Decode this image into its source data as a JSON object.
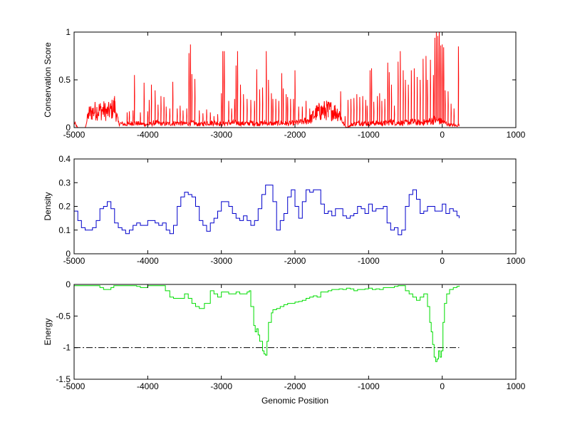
{
  "chart_data": [
    {
      "type": "line",
      "ylabel": "Conservation Score",
      "xlim": [
        -5000,
        1000
      ],
      "ylim": [
        0,
        1
      ],
      "xticks": [
        -5000,
        -4000,
        -3000,
        -2000,
        -1000,
        0,
        1000
      ],
      "yticks": [
        0,
        0.5,
        1
      ],
      "ytick_labels": [
        "0",
        "0.5",
        "1"
      ],
      "grid": false,
      "color": "#ff0000",
      "x_start": -5000,
      "x_end": 230,
      "profile": [
        [
          -5000,
          0.05
        ],
        [
          -4950,
          0.0
        ],
        [
          -4850,
          0.0
        ],
        [
          -4800,
          0.15
        ],
        [
          -4700,
          0.18
        ],
        [
          -4600,
          0.18
        ],
        [
          -4550,
          0.16
        ],
        [
          -4500,
          0.18
        ],
        [
          -4450,
          0.22
        ],
        [
          -4400,
          0.05
        ],
        [
          -4300,
          0.03
        ],
        [
          -4200,
          0.05
        ],
        [
          -4100,
          0.04
        ],
        [
          -4000,
          0.03
        ],
        [
          -3900,
          0.05
        ],
        [
          -3800,
          0.04
        ],
        [
          -3700,
          0.04
        ],
        [
          -3600,
          0.05
        ],
        [
          -3500,
          0.04
        ],
        [
          -3400,
          0.05
        ],
        [
          -3300,
          0.03
        ],
        [
          -3200,
          0.05
        ],
        [
          -3100,
          0.05
        ],
        [
          -3000,
          0.04
        ],
        [
          -2900,
          0.05
        ],
        [
          -2800,
          0.05
        ],
        [
          -2700,
          0.04
        ],
        [
          -2600,
          0.05
        ],
        [
          -2500,
          0.04
        ],
        [
          -2400,
          0.05
        ],
        [
          -2300,
          0.04
        ],
        [
          -2200,
          0.05
        ],
        [
          -2100,
          0.04
        ],
        [
          -2000,
          0.05
        ],
        [
          -1900,
          0.06
        ],
        [
          -1800,
          0.08
        ],
        [
          -1700,
          0.16
        ],
        [
          -1600,
          0.18
        ],
        [
          -1500,
          0.18
        ],
        [
          -1400,
          0.15
        ],
        [
          -1340,
          0.04
        ],
        [
          -1300,
          0.0
        ],
        [
          -1200,
          0.04
        ],
        [
          -1100,
          0.05
        ],
        [
          -1000,
          0.04
        ],
        [
          -900,
          0.05
        ],
        [
          -800,
          0.04
        ],
        [
          -700,
          0.06
        ],
        [
          -600,
          0.05
        ],
        [
          -500,
          0.05
        ],
        [
          -400,
          0.06
        ],
        [
          -300,
          0.05
        ],
        [
          -200,
          0.06
        ],
        [
          -100,
          0.08
        ],
        [
          0,
          0.06
        ],
        [
          100,
          0.03
        ],
        [
          200,
          0.02
        ],
        [
          230,
          0.03
        ]
      ],
      "peaks": [
        [
          -4450,
          0.33
        ],
        [
          -4280,
          0.16
        ],
        [
          -4250,
          0.17
        ],
        [
          -4200,
          0.18
        ],
        [
          -4180,
          0.55
        ],
        [
          -4100,
          0.16
        ],
        [
          -4050,
          0.47
        ],
        [
          -4000,
          0.17
        ],
        [
          -3980,
          0.29
        ],
        [
          -3950,
          0.45
        ],
        [
          -3900,
          0.39
        ],
        [
          -3860,
          0.24
        ],
        [
          -3820,
          0.33
        ],
        [
          -3780,
          0.32
        ],
        [
          -3750,
          0.22
        ],
        [
          -3700,
          0.2
        ],
        [
          -3660,
          0.48
        ],
        [
          -3600,
          0.2
        ],
        [
          -3560,
          0.23
        ],
        [
          -3520,
          0.18
        ],
        [
          -3470,
          0.2
        ],
        [
          -3440,
          0.78
        ],
        [
          -3420,
          0.87
        ],
        [
          -3400,
          0.56
        ],
        [
          -3360,
          0.51
        ],
        [
          -3300,
          0.18
        ],
        [
          -3250,
          0.15
        ],
        [
          -3200,
          0.19
        ],
        [
          -3150,
          0.16
        ],
        [
          -3100,
          0.12
        ],
        [
          -3050,
          0.14
        ],
        [
          -3000,
          0.36
        ],
        [
          -2980,
          0.8
        ],
        [
          -2960,
          0.8
        ],
        [
          -2900,
          0.28
        ],
        [
          -2860,
          0.2
        ],
        [
          -2820,
          0.3
        ],
        [
          -2800,
          0.65
        ],
        [
          -2780,
          0.8
        ],
        [
          -2740,
          0.45
        ],
        [
          -2700,
          0.35
        ],
        [
          -2650,
          0.3
        ],
        [
          -2600,
          0.29
        ],
        [
          -2550,
          0.28
        ],
        [
          -2520,
          0.61
        ],
        [
          -2480,
          0.4
        ],
        [
          -2440,
          0.42
        ],
        [
          -2390,
          0.8
        ],
        [
          -2360,
          0.5
        ],
        [
          -2320,
          0.36
        ],
        [
          -2300,
          0.3
        ],
        [
          -2260,
          0.3
        ],
        [
          -2220,
          0.28
        ],
        [
          -2180,
          0.57
        ],
        [
          -2160,
          0.41
        ],
        [
          -2120,
          0.35
        ],
        [
          -2100,
          0.32
        ],
        [
          -2060,
          0.3
        ],
        [
          -2020,
          0.3
        ],
        [
          -2000,
          0.6
        ],
        [
          -1950,
          0.22
        ],
        [
          -1900,
          0.22
        ],
        [
          -1850,
          0.28
        ],
        [
          -1800,
          0.2
        ],
        [
          -1750,
          0.18
        ],
        [
          -1700,
          0.2
        ],
        [
          -1650,
          0.22
        ],
        [
          -1600,
          0.16
        ],
        [
          -1550,
          0.18
        ],
        [
          -1500,
          0.18
        ],
        [
          -1450,
          0.2
        ],
        [
          -1380,
          0.38
        ],
        [
          -1320,
          0.12
        ],
        [
          -1280,
          0.29
        ],
        [
          -1240,
          0.3
        ],
        [
          -1200,
          0.31
        ],
        [
          -1160,
          0.35
        ],
        [
          -1120,
          0.32
        ],
        [
          -1080,
          0.33
        ],
        [
          -1040,
          0.29
        ],
        [
          -1020,
          0.23
        ],
        [
          -980,
          0.6
        ],
        [
          -960,
          0.62
        ],
        [
          -930,
          0.27
        ],
        [
          -880,
          0.33
        ],
        [
          -850,
          0.36
        ],
        [
          -820,
          0.28
        ],
        [
          -780,
          0.3
        ],
        [
          -740,
          0.68
        ],
        [
          -720,
          0.58
        ],
        [
          -690,
          0.45
        ],
        [
          -650,
          0.23
        ],
        [
          -600,
          0.69
        ],
        [
          -570,
          0.8
        ],
        [
          -530,
          0.6
        ],
        [
          -500,
          0.5
        ],
        [
          -460,
          0.45
        ],
        [
          -420,
          0.6
        ],
        [
          -380,
          0.62
        ],
        [
          -340,
          0.53
        ],
        [
          -300,
          0.5
        ],
        [
          -260,
          0.72
        ],
        [
          -220,
          0.75
        ],
        [
          -200,
          0.5
        ],
        [
          -160,
          0.71
        ],
        [
          -120,
          0.55
        ],
        [
          -100,
          0.94
        ],
        [
          -80,
          1.0
        ],
        [
          -60,
          0.96
        ],
        [
          -40,
          1.0
        ],
        [
          -20,
          0.86
        ],
        [
          0,
          0.87
        ],
        [
          20,
          0.84
        ],
        [
          40,
          0.39
        ],
        [
          80,
          0.38
        ],
        [
          120,
          0.25
        ],
        [
          160,
          0.2
        ],
        [
          220,
          0.85
        ]
      ]
    },
    {
      "type": "line",
      "ylabel": "Density",
      "xlim": [
        -5000,
        1000
      ],
      "ylim": [
        0,
        0.4
      ],
      "xticks": [
        -5000,
        -4000,
        -3000,
        -2000,
        -1000,
        0,
        1000
      ],
      "yticks": [
        0,
        0.1,
        0.2,
        0.3,
        0.4
      ],
      "ytick_labels": [
        "0",
        "0.1",
        "0.2",
        "0.3",
        "0.4"
      ],
      "grid": false,
      "color": "#0000cc",
      "x": [
        -5000,
        -4950,
        -4900,
        -4850,
        -4800,
        -4750,
        -4700,
        -4650,
        -4600,
        -4550,
        -4500,
        -4450,
        -4400,
        -4350,
        -4300,
        -4250,
        -4200,
        -4150,
        -4100,
        -4050,
        -4000,
        -3950,
        -3900,
        -3850,
        -3800,
        -3750,
        -3700,
        -3650,
        -3600,
        -3550,
        -3500,
        -3450,
        -3400,
        -3350,
        -3300,
        -3250,
        -3200,
        -3150,
        -3100,
        -3050,
        -3000,
        -2950,
        -2900,
        -2850,
        -2800,
        -2750,
        -2700,
        -2650,
        -2600,
        -2550,
        -2500,
        -2450,
        -2400,
        -2350,
        -2300,
        -2250,
        -2200,
        -2150,
        -2100,
        -2050,
        -2000,
        -1950,
        -1900,
        -1850,
        -1800,
        -1750,
        -1700,
        -1650,
        -1600,
        -1550,
        -1500,
        -1450,
        -1400,
        -1350,
        -1300,
        -1250,
        -1200,
        -1150,
        -1100,
        -1050,
        -1000,
        -950,
        -900,
        -850,
        -800,
        -750,
        -700,
        -650,
        -600,
        -550,
        -500,
        -450,
        -400,
        -350,
        -300,
        -250,
        -200,
        -150,
        -100,
        -50,
        0,
        50,
        100,
        150,
        200,
        230
      ],
      "y": [
        0.18,
        0.14,
        0.11,
        0.1,
        0.1,
        0.11,
        0.14,
        0.19,
        0.2,
        0.22,
        0.19,
        0.13,
        0.11,
        0.1,
        0.085,
        0.1,
        0.12,
        0.13,
        0.12,
        0.12,
        0.14,
        0.14,
        0.13,
        0.12,
        0.13,
        0.1,
        0.085,
        0.12,
        0.2,
        0.24,
        0.26,
        0.25,
        0.24,
        0.2,
        0.14,
        0.12,
        0.095,
        0.13,
        0.15,
        0.18,
        0.22,
        0.22,
        0.2,
        0.17,
        0.15,
        0.14,
        0.16,
        0.14,
        0.12,
        0.14,
        0.19,
        0.25,
        0.29,
        0.29,
        0.22,
        0.1,
        0.14,
        0.17,
        0.24,
        0.27,
        0.2,
        0.15,
        0.22,
        0.27,
        0.26,
        0.27,
        0.27,
        0.21,
        0.17,
        0.18,
        0.16,
        0.19,
        0.19,
        0.16,
        0.15,
        0.16,
        0.17,
        0.2,
        0.19,
        0.17,
        0.21,
        0.18,
        0.19,
        0.19,
        0.2,
        0.13,
        0.1,
        0.11,
        0.08,
        0.1,
        0.2,
        0.25,
        0.27,
        0.23,
        0.17,
        0.18,
        0.2,
        0.2,
        0.18,
        0.18,
        0.21,
        0.17,
        0.19,
        0.18,
        0.16,
        0.15
      ]
    },
    {
      "type": "line",
      "ylabel": "Energy",
      "xlabel": "Genomic Position",
      "xlim": [
        -5000,
        1000
      ],
      "ylim": [
        -1.5,
        0
      ],
      "xticks": [
        -5000,
        -4000,
        -3000,
        -2000,
        -1000,
        0,
        1000
      ],
      "yticks": [
        0,
        -0.5,
        -1,
        -1.5
      ],
      "ytick_labels": [
        "0",
        "-0.5",
        "-1",
        "-1.5"
      ],
      "grid": false,
      "color": "#00dd00",
      "threshold": -1,
      "threshold_color": "#000000",
      "threshold_range": [
        -5000,
        230
      ],
      "x": [
        -5000,
        -4700,
        -4650,
        -4600,
        -4550,
        -4500,
        -4460,
        -4450,
        -4200,
        -4150,
        -4100,
        -4050,
        -4000,
        -3900,
        -3800,
        -3760,
        -3700,
        -3650,
        -3600,
        -3550,
        -3500,
        -3450,
        -3400,
        -3350,
        -3300,
        -3250,
        -3230,
        -3200,
        -3150,
        -3100,
        -3050,
        -3000,
        -2950,
        -2900,
        -2850,
        -2800,
        -2750,
        -2700,
        -2650,
        -2620,
        -2600,
        -2560,
        -2540,
        -2520,
        -2500,
        -2480,
        -2460,
        -2440,
        -2420,
        -2400,
        -2380,
        -2360,
        -2340,
        -2320,
        -2300,
        -2250,
        -2200,
        -2150,
        -2100,
        -2050,
        -2000,
        -1950,
        -1900,
        -1850,
        -1800,
        -1750,
        -1700,
        -1650,
        -1600,
        -1550,
        -1500,
        -1450,
        -1400,
        -1350,
        -1300,
        -1250,
        -1200,
        -1150,
        -1100,
        -1050,
        -1000,
        -950,
        -900,
        -850,
        -800,
        -750,
        -700,
        -650,
        -600,
        -550,
        -500,
        -450,
        -400,
        -350,
        -300,
        -250,
        -200,
        -170,
        -150,
        -130,
        -110,
        -90,
        -70,
        -50,
        -30,
        -10,
        10,
        30,
        60,
        100,
        150,
        200,
        230
      ],
      "y": [
        -0.02,
        -0.02,
        -0.05,
        -0.08,
        -0.08,
        -0.05,
        -0.02,
        -0.02,
        -0.02,
        -0.03,
        -0.05,
        -0.05,
        -0.02,
        -0.02,
        -0.02,
        -0.1,
        -0.2,
        -0.22,
        -0.22,
        -0.22,
        -0.15,
        -0.22,
        -0.3,
        -0.35,
        -0.38,
        -0.38,
        -0.3,
        -0.3,
        -0.1,
        -0.15,
        -0.2,
        -0.12,
        -0.12,
        -0.15,
        -0.15,
        -0.12,
        -0.15,
        -0.15,
        -0.12,
        -0.1,
        -0.35,
        -0.65,
        -0.75,
        -0.7,
        -0.8,
        -0.9,
        -0.9,
        -1.05,
        -1.1,
        -1.12,
        -0.9,
        -0.6,
        -0.6,
        -0.45,
        -0.4,
        -0.38,
        -0.35,
        -0.32,
        -0.3,
        -0.3,
        -0.28,
        -0.27,
        -0.25,
        -0.22,
        -0.2,
        -0.18,
        -0.2,
        -0.12,
        -0.12,
        -0.1,
        -0.08,
        -0.08,
        -0.07,
        -0.08,
        -0.06,
        -0.07,
        -0.1,
        -0.08,
        -0.08,
        -0.07,
        -0.06,
        -0.08,
        -0.07,
        -0.08,
        -0.05,
        -0.05,
        -0.05,
        -0.03,
        -0.02,
        -0.02,
        -0.1,
        -0.15,
        -0.2,
        -0.25,
        -0.2,
        -0.15,
        -0.35,
        -0.6,
        -0.75,
        -0.95,
        -1.15,
        -1.22,
        -1.18,
        -1.05,
        -1.15,
        -1.05,
        -0.6,
        -0.3,
        -0.15,
        -0.08,
        -0.05,
        -0.03,
        -0.02
      ]
    }
  ]
}
